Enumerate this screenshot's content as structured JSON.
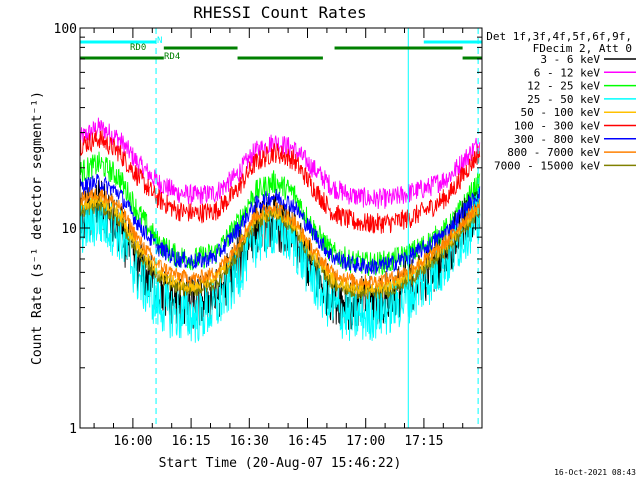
{
  "chart_data": {
    "type": "line",
    "title": "RHESSI Count Rates",
    "xlabel": "Start Time (20-Aug-07 15:46:22)",
    "ylabel": "Count Rate (s⁻¹ detector segment⁻¹)",
    "y_scale": "log",
    "ylim": [
      1,
      100
    ],
    "y_ticks": [
      "1",
      "10",
      "100"
    ],
    "x_range_minutes_after_start": [
      0,
      103.6
    ],
    "x_ticks": [
      {
        "label": "16:00",
        "minute": 13.63
      },
      {
        "label": "16:15",
        "minute": 28.63
      },
      {
        "label": "16:30",
        "minute": 43.63
      },
      {
        "label": "16:45",
        "minute": 58.63
      },
      {
        "label": "17:00",
        "minute": 73.63
      },
      {
        "label": "17:15",
        "minute": 88.63
      }
    ],
    "x_unit": "minutes after 15:46:22",
    "legend_header": [
      "Det 1f,3f,4f,5f,6f,9f,",
      "FDecim 2, Att 0"
    ],
    "legend_position": "right",
    "series": [
      {
        "name": "3 - 6 keV",
        "color": "#000000",
        "x": [
          0,
          5,
          10,
          15,
          20,
          25,
          30,
          35,
          40,
          45,
          50,
          55,
          60,
          65,
          70,
          75,
          80,
          85,
          90,
          95,
          100,
          103
        ],
        "values": [
          11,
          13,
          10,
          6.5,
          5,
          4.3,
          4.2,
          4.6,
          6.5,
          10,
          11,
          9,
          6,
          4.6,
          4.2,
          4.2,
          4.6,
          5.2,
          6,
          8,
          11,
          12
        ]
      },
      {
        "name": "6 - 12 keV",
        "color": "#ff00ff",
        "x": [
          0,
          5,
          10,
          15,
          20,
          25,
          30,
          35,
          40,
          45,
          50,
          55,
          60,
          65,
          70,
          75,
          80,
          85,
          90,
          95,
          100,
          103
        ],
        "values": [
          28,
          32,
          28,
          21,
          17,
          15,
          14.5,
          15,
          18,
          24,
          27,
          25,
          20,
          16,
          14.5,
          14,
          14,
          15,
          16,
          18,
          23,
          27
        ]
      },
      {
        "name": "12 - 25 keV",
        "color": "#00ff00",
        "x": [
          0,
          5,
          10,
          15,
          20,
          25,
          30,
          35,
          40,
          45,
          50,
          55,
          60,
          65,
          70,
          75,
          80,
          85,
          90,
          95,
          100,
          103
        ],
        "values": [
          19,
          21,
          18,
          12,
          8.5,
          7.2,
          7,
          7.5,
          10,
          15,
          17,
          15,
          10,
          7.5,
          6.8,
          6.6,
          6.8,
          7.4,
          8.5,
          10,
          14,
          17
        ]
      },
      {
        "name": "25 - 50 keV",
        "color": "#00ffff",
        "x": [
          0,
          5,
          10,
          15,
          20,
          25,
          30,
          35,
          40,
          45,
          50,
          55,
          60,
          65,
          70,
          75,
          80,
          85,
          90,
          95,
          100,
          103
        ],
        "values": [
          10,
          11,
          9.5,
          5.6,
          4.2,
          3.7,
          3.6,
          4,
          5.6,
          8.6,
          10,
          8.6,
          5.6,
          4,
          3.6,
          3.7,
          4,
          4.6,
          5.6,
          7,
          10,
          11
        ]
      },
      {
        "name": "50 - 100 keV",
        "color": "#ffc000",
        "x": [
          0,
          5,
          10,
          15,
          20,
          25,
          30,
          35,
          40,
          45,
          50,
          55,
          60,
          65,
          70,
          75,
          80,
          85,
          90,
          95,
          100,
          103
        ],
        "values": [
          13,
          14,
          12,
          8,
          6,
          5.3,
          5.1,
          5.6,
          7.6,
          11,
          12,
          10.5,
          7.5,
          5.6,
          5.1,
          5,
          5.2,
          5.9,
          7,
          8.5,
          11,
          13
        ]
      },
      {
        "name": "100 - 300 keV",
        "color": "#ff0000",
        "x": [
          0,
          5,
          10,
          15,
          20,
          25,
          30,
          35,
          40,
          45,
          50,
          55,
          60,
          65,
          70,
          75,
          80,
          85,
          90,
          95,
          100,
          103
        ],
        "values": [
          26,
          28,
          24,
          18,
          14,
          12.2,
          11.8,
          12.2,
          15,
          21,
          24,
          22,
          16,
          12,
          10.8,
          10.5,
          10.6,
          11.2,
          12.5,
          14.5,
          20,
          24
        ]
      },
      {
        "name": "300 - 800 keV",
        "color": "#0000ff",
        "x": [
          0,
          5,
          10,
          15,
          20,
          25,
          30,
          35,
          40,
          45,
          50,
          55,
          60,
          65,
          70,
          75,
          80,
          85,
          90,
          95,
          100,
          103
        ],
        "values": [
          16,
          17,
          15,
          10.5,
          8,
          7,
          6.8,
          7.2,
          9.5,
          13,
          14.5,
          13,
          9.5,
          7.2,
          6.6,
          6.4,
          6.6,
          7.2,
          8.2,
          9.8,
          13,
          15
        ]
      },
      {
        "name": "800 - 7000 keV",
        "color": "#ff8000",
        "x": [
          0,
          5,
          10,
          15,
          20,
          25,
          30,
          35,
          40,
          45,
          50,
          55,
          60,
          65,
          70,
          75,
          80,
          85,
          90,
          95,
          100,
          103
        ],
        "values": [
          14,
          15,
          13,
          8.8,
          6.6,
          5.8,
          5.6,
          6,
          8,
          11.5,
          13,
          11,
          7.8,
          6,
          5.5,
          5.4,
          5.6,
          6.2,
          7.2,
          8.8,
          11.5,
          13
        ]
      },
      {
        "name": "7000 - 15000 keV",
        "color": "#808000",
        "x": [
          0,
          5,
          10,
          15,
          20,
          25,
          30,
          35,
          40,
          45,
          50,
          55,
          60,
          65,
          70,
          75,
          80,
          85,
          90,
          95,
          100,
          103
        ],
        "values": [
          12,
          13,
          11,
          7.5,
          5.7,
          5,
          4.9,
          5.3,
          7,
          10.5,
          12,
          10,
          7,
          5.3,
          4.8,
          4.7,
          4.9,
          5.5,
          6.5,
          8,
          10.5,
          12
        ]
      }
    ],
    "annotations": {
      "flags": [
        {
          "label": "N",
          "color": "#00ffff",
          "segments": [
            [
              0,
              19.6
            ],
            [
              88.6,
              103.6
            ]
          ]
        },
        {
          "label": "RD0",
          "color": "#008000",
          "segments": [
            [
              21.6,
              40.6
            ],
            [
              65.6,
              98.6
            ]
          ]
        },
        {
          "label": "RD4",
          "color": "#008000",
          "segments": [
            [
              0,
              21.6
            ],
            [
              40.6,
              62.6
            ],
            [
              98.6,
              103.6
            ]
          ]
        }
      ],
      "vlines_solid": [
        0,
        84.6
      ],
      "vlines_dashed": [
        19.6,
        102.6
      ]
    },
    "timestamp": "16-Oct-2021 08:43"
  }
}
